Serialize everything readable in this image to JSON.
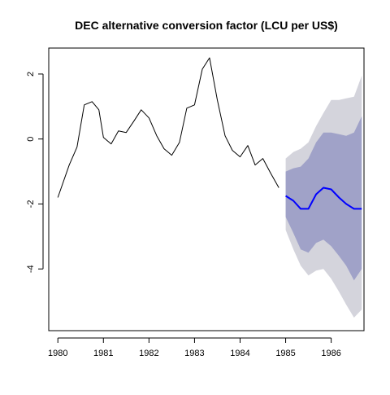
{
  "chart_data": {
    "type": "line",
    "title": "DEC alternative conversion factor (LCU per US$)",
    "xlabel": "",
    "ylabel": "",
    "xlim": [
      1979.8,
      1986.72
    ],
    "ylim": [
      -5.9,
      2.8
    ],
    "x_ticks": [
      1980,
      1981,
      1982,
      1983,
      1984,
      1985,
      1986
    ],
    "x_tick_labels": [
      "1980",
      "1981",
      "1982",
      "1983",
      "1984",
      "1985",
      "1986"
    ],
    "y_ticks": [
      -4,
      -2,
      0,
      2
    ],
    "y_tick_labels": [
      "-4",
      "-2",
      "0",
      "2"
    ],
    "grid": false,
    "colors": {
      "history": "#000000",
      "forecast": "#0000ff",
      "band_95": "#d4d4dc",
      "band_80": "#a0a2c8"
    },
    "series": [
      {
        "role": "history",
        "x": [
          1980.0,
          1980.25,
          1980.42,
          1980.58,
          1980.75,
          1980.9,
          1981.0,
          1981.17,
          1981.33,
          1981.5,
          1981.67,
          1981.83,
          1982.0,
          1982.17,
          1982.33,
          1982.5,
          1982.67,
          1982.83,
          1983.0,
          1983.17,
          1983.33,
          1983.5,
          1983.67,
          1983.83,
          1984.0,
          1984.17,
          1984.33,
          1984.5,
          1984.67,
          1984.85
        ],
        "values": [
          -1.8,
          -0.8,
          -0.25,
          1.05,
          1.15,
          0.9,
          0.05,
          -0.15,
          0.25,
          0.2,
          0.55,
          0.9,
          0.65,
          0.1,
          -0.3,
          -0.5,
          -0.1,
          0.95,
          1.05,
          2.15,
          2.5,
          1.2,
          0.1,
          -0.35,
          -0.55,
          -0.2,
          -0.8,
          -0.6,
          -1.05,
          -1.5
        ]
      },
      {
        "role": "forecast",
        "x": [
          1985.0,
          1985.17,
          1985.33,
          1985.5,
          1985.67,
          1985.83,
          1986.0,
          1986.17,
          1986.33,
          1986.5,
          1986.67
        ],
        "values": [
          -1.75,
          -1.9,
          -2.15,
          -2.15,
          -1.7,
          -1.5,
          -1.55,
          -1.8,
          -2.0,
          -2.15,
          -2.15
        ]
      }
    ],
    "forecast_intervals": {
      "x": [
        1985.0,
        1985.17,
        1985.33,
        1985.5,
        1985.67,
        1985.83,
        1986.0,
        1986.17,
        1986.33,
        1986.5,
        1986.67
      ],
      "lo80": [
        -2.4,
        -2.9,
        -3.4,
        -3.5,
        -3.2,
        -3.1,
        -3.3,
        -3.6,
        -3.9,
        -4.35,
        -4.0
      ],
      "hi80": [
        -1.0,
        -0.9,
        -0.85,
        -0.6,
        -0.1,
        0.2,
        0.2,
        0.15,
        0.1,
        0.2,
        0.7
      ],
      "lo95": [
        -2.8,
        -3.4,
        -3.9,
        -4.2,
        -4.05,
        -4.0,
        -4.3,
        -4.7,
        -5.1,
        -5.5,
        -5.25
      ],
      "hi95": [
        -0.6,
        -0.4,
        -0.3,
        -0.1,
        0.4,
        0.8,
        1.2,
        1.2,
        1.25,
        1.3,
        1.95
      ]
    }
  }
}
